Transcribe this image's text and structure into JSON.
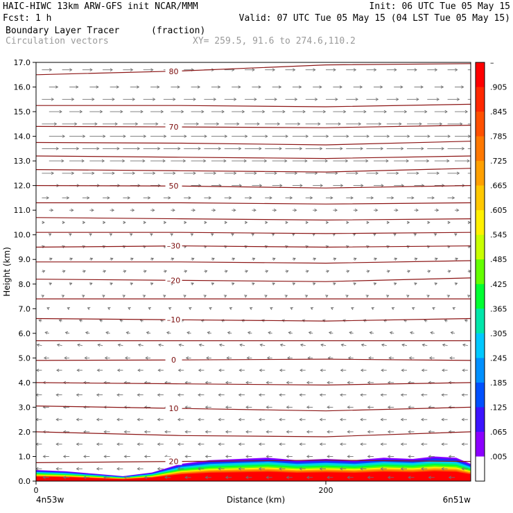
{
  "header": {
    "line1_left": "HAIC-HIWC 13km ARW-GFS init   NCAR/MMM",
    "line1_right": "Init: 06 UTC Tue 05 May 15",
    "line2_left": "Fcst:    1 h",
    "line2_right": "Valid: 07 UTC Tue 05 May 15 (04 LST Tue 05 May 15)",
    "line3_left": "Boundary Layer Tracer",
    "line3_units": "(fraction)",
    "line4_left": "Circulation vectors",
    "line4_xy": "XY= 259.5, 91.6 to 274.6,110.2"
  },
  "chart_data": {
    "type": "heatmap",
    "title": "Boundary Layer Tracer",
    "units": "(fraction)",
    "xlabel": "Distance (km)",
    "ylabel": "Height (km)",
    "xlim": [
      0,
      300
    ],
    "ylim": [
      0,
      17
    ],
    "x_ticks": [
      {
        "value": 0,
        "label": "0"
      },
      {
        "value": 200,
        "label": "200"
      }
    ],
    "x_end_labels": {
      "left": "4n53w",
      "right": "6n51w"
    },
    "y_ticks": [
      "0.0",
      "1.0",
      "2.0",
      "3.0",
      "4.0",
      "5.0",
      "6.0",
      "7.0",
      "8.0",
      "9.0",
      "10.0",
      "11.0",
      "12.0",
      "13.0",
      "14.0",
      "15.0",
      "16.0",
      "17.0"
    ],
    "colorbar": {
      "labels": [
        "–",
        ".905",
        ".845",
        ".785",
        ".725",
        ".665",
        ".605",
        ".545",
        ".485",
        ".425",
        ".365",
        ".305",
        ".245",
        ".185",
        ".125",
        ".065",
        ".005"
      ],
      "colors": [
        "#ff0000",
        "#ff2800",
        "#ff5000",
        "#ff7800",
        "#ffa000",
        "#ffc800",
        "#fff000",
        "#c8ff00",
        "#64ff00",
        "#00ff32",
        "#00e6aa",
        "#00c8ff",
        "#0090ff",
        "#0050ff",
        "#3c14ff",
        "#8c00ff",
        "#ffffff"
      ]
    },
    "tracer_top_km": {
      "x": [
        0,
        20,
        40,
        60,
        80,
        100,
        120,
        140,
        160,
        180,
        200,
        220,
        240,
        260,
        275,
        290,
        300
      ],
      "y": [
        0.45,
        0.4,
        0.3,
        0.2,
        0.35,
        0.7,
        0.85,
        0.9,
        0.95,
        0.85,
        0.9,
        0.85,
        0.95,
        0.9,
        1.0,
        0.95,
        0.7
      ]
    },
    "contours": [
      {
        "label": "80",
        "x": [
          0,
          100,
          200,
          300
        ],
        "y": [
          16.5,
          16.65,
          16.9,
          16.95
        ]
      },
      {
        "label": "",
        "x": [
          0,
          100,
          200,
          300
        ],
        "y": [
          15.25,
          15.25,
          15.2,
          15.3
        ]
      },
      {
        "label": "70",
        "x": [
          0,
          100,
          200,
          300
        ],
        "y": [
          14.4,
          14.38,
          14.35,
          14.45
        ]
      },
      {
        "label": "",
        "x": [
          0,
          100,
          200,
          300
        ],
        "y": [
          13.75,
          13.72,
          13.65,
          13.8
        ]
      },
      {
        "label": "",
        "x": [
          0,
          100,
          200,
          300
        ],
        "y": [
          13.2,
          13.15,
          13.1,
          13.2
        ]
      },
      {
        "label": "",
        "x": [
          0,
          100,
          200,
          300
        ],
        "y": [
          12.65,
          12.6,
          12.55,
          12.7
        ]
      },
      {
        "label": "50",
        "x": [
          0,
          100,
          200,
          300
        ],
        "y": [
          12.0,
          11.98,
          11.9,
          12.0
        ]
      },
      {
        "label": "",
        "x": [
          0,
          100,
          200,
          300
        ],
        "y": [
          11.3,
          11.3,
          11.25,
          11.3
        ]
      },
      {
        "label": "",
        "x": [
          0,
          100,
          200,
          300
        ],
        "y": [
          10.7,
          10.65,
          10.6,
          10.65
        ]
      },
      {
        "label": "",
        "x": [
          0,
          100,
          200,
          300
        ],
        "y": [
          10.1,
          10.1,
          10.05,
          10.1
        ]
      },
      {
        "label": "–30",
        "x": [
          0,
          100,
          200,
          300
        ],
        "y": [
          9.5,
          9.55,
          9.5,
          9.55
        ]
      },
      {
        "label": "",
        "x": [
          0,
          100,
          200,
          300
        ],
        "y": [
          8.9,
          8.9,
          8.85,
          8.95
        ]
      },
      {
        "label": "–20",
        "x": [
          0,
          100,
          200,
          300
        ],
        "y": [
          8.2,
          8.15,
          8.1,
          8.25
        ]
      },
      {
        "label": "",
        "x": [
          0,
          100,
          200,
          300
        ],
        "y": [
          7.4,
          7.4,
          7.4,
          7.4
        ]
      },
      {
        "label": "–10",
        "x": [
          0,
          100,
          200,
          300
        ],
        "y": [
          6.6,
          6.55,
          6.5,
          6.6
        ]
      },
      {
        "label": "",
        "x": [
          0,
          100,
          200,
          300
        ],
        "y": [
          5.7,
          5.7,
          5.7,
          5.7
        ]
      },
      {
        "label": "0",
        "x": [
          0,
          100,
          200,
          300
        ],
        "y": [
          4.9,
          4.92,
          4.95,
          4.9
        ]
      },
      {
        "label": "",
        "x": [
          0,
          100,
          200,
          300
        ],
        "y": [
          4.0,
          3.95,
          3.9,
          4.0
        ]
      },
      {
        "label": "10",
        "x": [
          0,
          100,
          200,
          300
        ],
        "y": [
          3.05,
          2.95,
          2.85,
          3.0
        ]
      },
      {
        "label": "",
        "x": [
          0,
          100,
          200,
          300
        ],
        "y": [
          2.0,
          1.85,
          1.8,
          2.0
        ]
      },
      {
        "label": "20",
        "x": [
          0,
          100,
          200,
          300
        ],
        "y": [
          0.75,
          0.8,
          0.85,
          0.8
        ]
      }
    ],
    "wind_vectors": {
      "x_spacing_km": 14,
      "rows": [
        {
          "z": 16.7,
          "u": 1.0,
          "w": 0.0
        },
        {
          "z": 16.0,
          "u": 0.9,
          "w": 0.0
        },
        {
          "z": 15.5,
          "u": 1.2,
          "w": 0.0
        },
        {
          "z": 15.0,
          "u": 1.3,
          "w": 0.0
        },
        {
          "z": 14.5,
          "u": 1.5,
          "w": 0.0
        },
        {
          "z": 14.0,
          "u": 1.6,
          "w": 0.0
        },
        {
          "z": 13.5,
          "u": 1.7,
          "w": 0.0
        },
        {
          "z": 13.0,
          "u": 1.5,
          "w": 0.0
        },
        {
          "z": 12.5,
          "u": 1.2,
          "w": 0.0
        },
        {
          "z": 12.0,
          "u": 1.0,
          "w": 0.0
        },
        {
          "z": 11.5,
          "u": 0.7,
          "w": 0.0
        },
        {
          "z": 11.0,
          "u": 0.4,
          "w": 0.0
        },
        {
          "z": 10.5,
          "u": 0.25,
          "w": 0.0
        },
        {
          "z": 10.0,
          "u": 0.2,
          "w": 0.1
        },
        {
          "z": 9.5,
          "u": 0.25,
          "w": 0.1
        },
        {
          "z": 9.0,
          "u": 0.3,
          "w": 0.1
        },
        {
          "z": 8.5,
          "u": 0.3,
          "w": 0.1
        },
        {
          "z": 8.0,
          "u": 0.25,
          "w": 0.1
        },
        {
          "z": 7.5,
          "u": 0.2,
          "w": 0.1
        },
        {
          "z": 7.0,
          "u": -0.2,
          "w": 0.1
        },
        {
          "z": 6.5,
          "u": -0.3,
          "w": 0.1
        },
        {
          "z": 6.0,
          "u": -0.4,
          "w": 0.1
        },
        {
          "z": 5.5,
          "u": -0.5,
          "w": 0.1
        },
        {
          "z": 5.0,
          "u": -0.5,
          "w": 0.0
        },
        {
          "z": 4.5,
          "u": -0.55,
          "w": 0.0
        },
        {
          "z": 4.0,
          "u": -0.6,
          "w": 0.0
        },
        {
          "z": 3.5,
          "u": -0.6,
          "w": 0.0
        },
        {
          "z": 3.0,
          "u": -0.6,
          "w": 0.0
        },
        {
          "z": 2.5,
          "u": -0.6,
          "w": 0.0
        },
        {
          "z": 2.0,
          "u": -0.6,
          "w": 0.0
        },
        {
          "z": 1.5,
          "u": -0.6,
          "w": 0.0
        },
        {
          "z": 1.0,
          "u": -0.6,
          "w": 0.0
        },
        {
          "z": 0.5,
          "u": -0.6,
          "w": 0.0
        },
        {
          "z": 0.15,
          "u": -0.6,
          "w": 0.0
        }
      ]
    }
  }
}
